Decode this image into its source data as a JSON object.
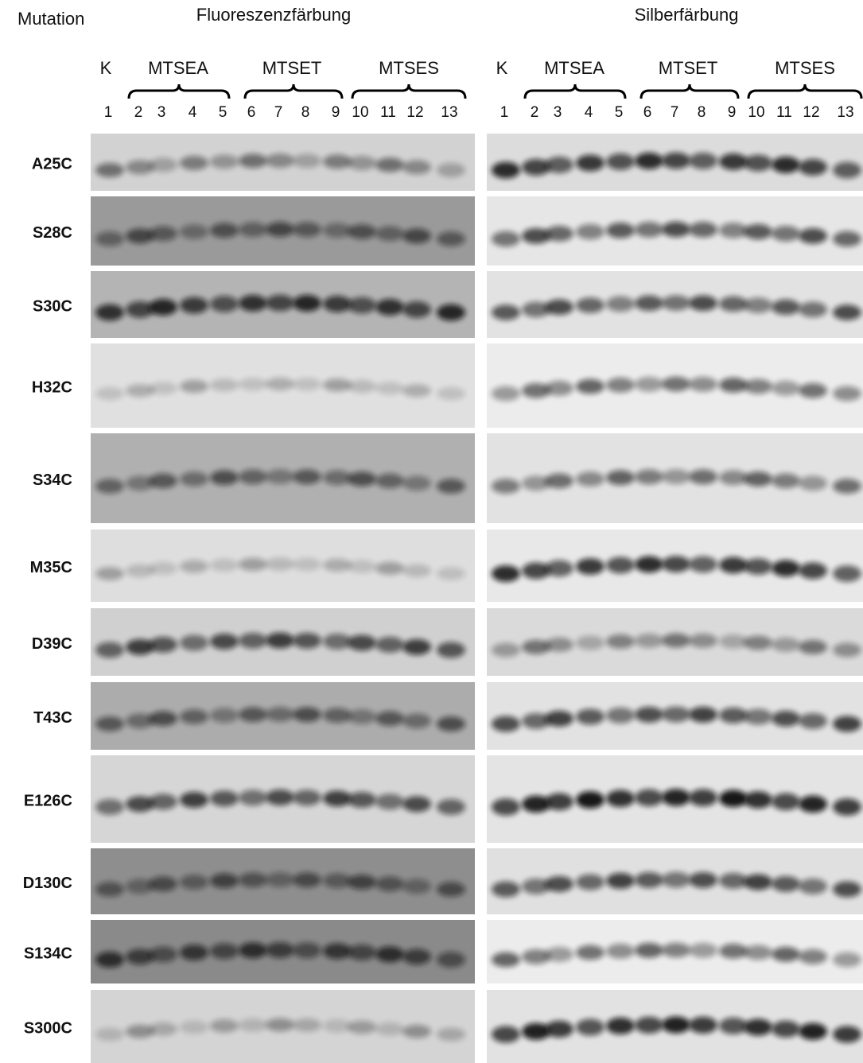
{
  "header": {
    "row_label": "Mutation",
    "left_title": "Fluoreszenzfärbung",
    "right_title": "Silberfärbung"
  },
  "lane_groups": [
    "K",
    "MTSEA",
    "MTSET",
    "MTSES"
  ],
  "lanes": [
    "1",
    "2",
    "3",
    "4",
    "5",
    "6",
    "7",
    "8",
    "9",
    "10",
    "11",
    "12",
    "13"
  ],
  "rows": [
    "A25C",
    "S28C",
    "S30C",
    "H32C",
    "S34C",
    "M35C",
    "D39C",
    "T43C",
    "E126C",
    "D130C",
    "S134C",
    "S300C"
  ]
}
